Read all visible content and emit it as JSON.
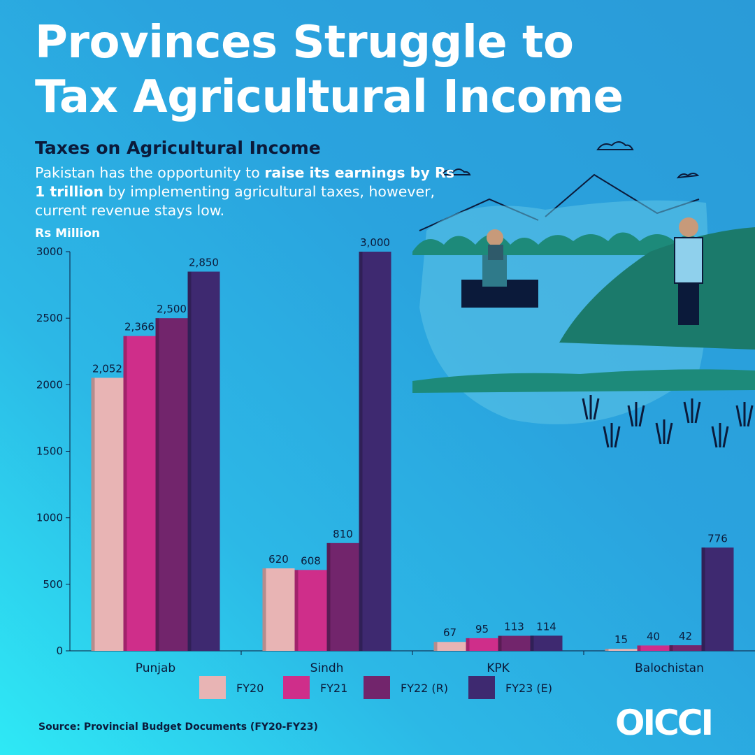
{
  "header": {
    "title_line1": "Provinces Struggle to",
    "title_line2": "Tax Agricultural Income",
    "subtitle": "Taxes on Agricultural Income",
    "desc_part1": "Pakistan has the opportunity to ",
    "desc_bold": "raise its earnings by Rs 1 trillion",
    "desc_part2": " by implementing agricultural taxes, however, current revenue stays low.",
    "unit": "Rs Million"
  },
  "footer": {
    "source": "Source: Provincial Budget Documents (FY20-FY23)",
    "logo": "OICCI"
  },
  "illustration": {
    "icons": [
      "farmer-tractor-icon",
      "farmer-planting-icon",
      "mountains-icon",
      "rice-seedlings-icon",
      "clouds-icon"
    ]
  },
  "chart_data": {
    "type": "bar",
    "title": "Taxes on Agricultural Income",
    "ylabel": "Rs Million",
    "ylim": [
      0,
      3000
    ],
    "yticks": [
      0,
      500,
      1000,
      1500,
      2000,
      2500,
      3000
    ],
    "grid": false,
    "legend_position": "bottom",
    "categories": [
      "Punjab",
      "Sindh",
      "KPK",
      "Balochistan"
    ],
    "series": [
      {
        "name": "FY20",
        "color": "#e8b4b4",
        "values": [
          2052,
          620,
          67,
          15
        ],
        "labels": [
          "2,052",
          "620",
          "67",
          "15"
        ]
      },
      {
        "name": "FY21",
        "color": "#cf2e8a",
        "values": [
          2366,
          608,
          95,
          40
        ],
        "labels": [
          "2,366",
          "608",
          "95",
          "40"
        ]
      },
      {
        "name": "FY22 (R)",
        "color": "#72256c",
        "values": [
          2500,
          810,
          113,
          42
        ],
        "labels": [
          "2,500",
          "810",
          "113",
          "42"
        ]
      },
      {
        "name": "FY23 (E)",
        "color": "#3e2970",
        "values": [
          2850,
          3000,
          114,
          776
        ],
        "labels": [
          "2,850",
          "3,000",
          "114",
          "776"
        ]
      }
    ]
  }
}
